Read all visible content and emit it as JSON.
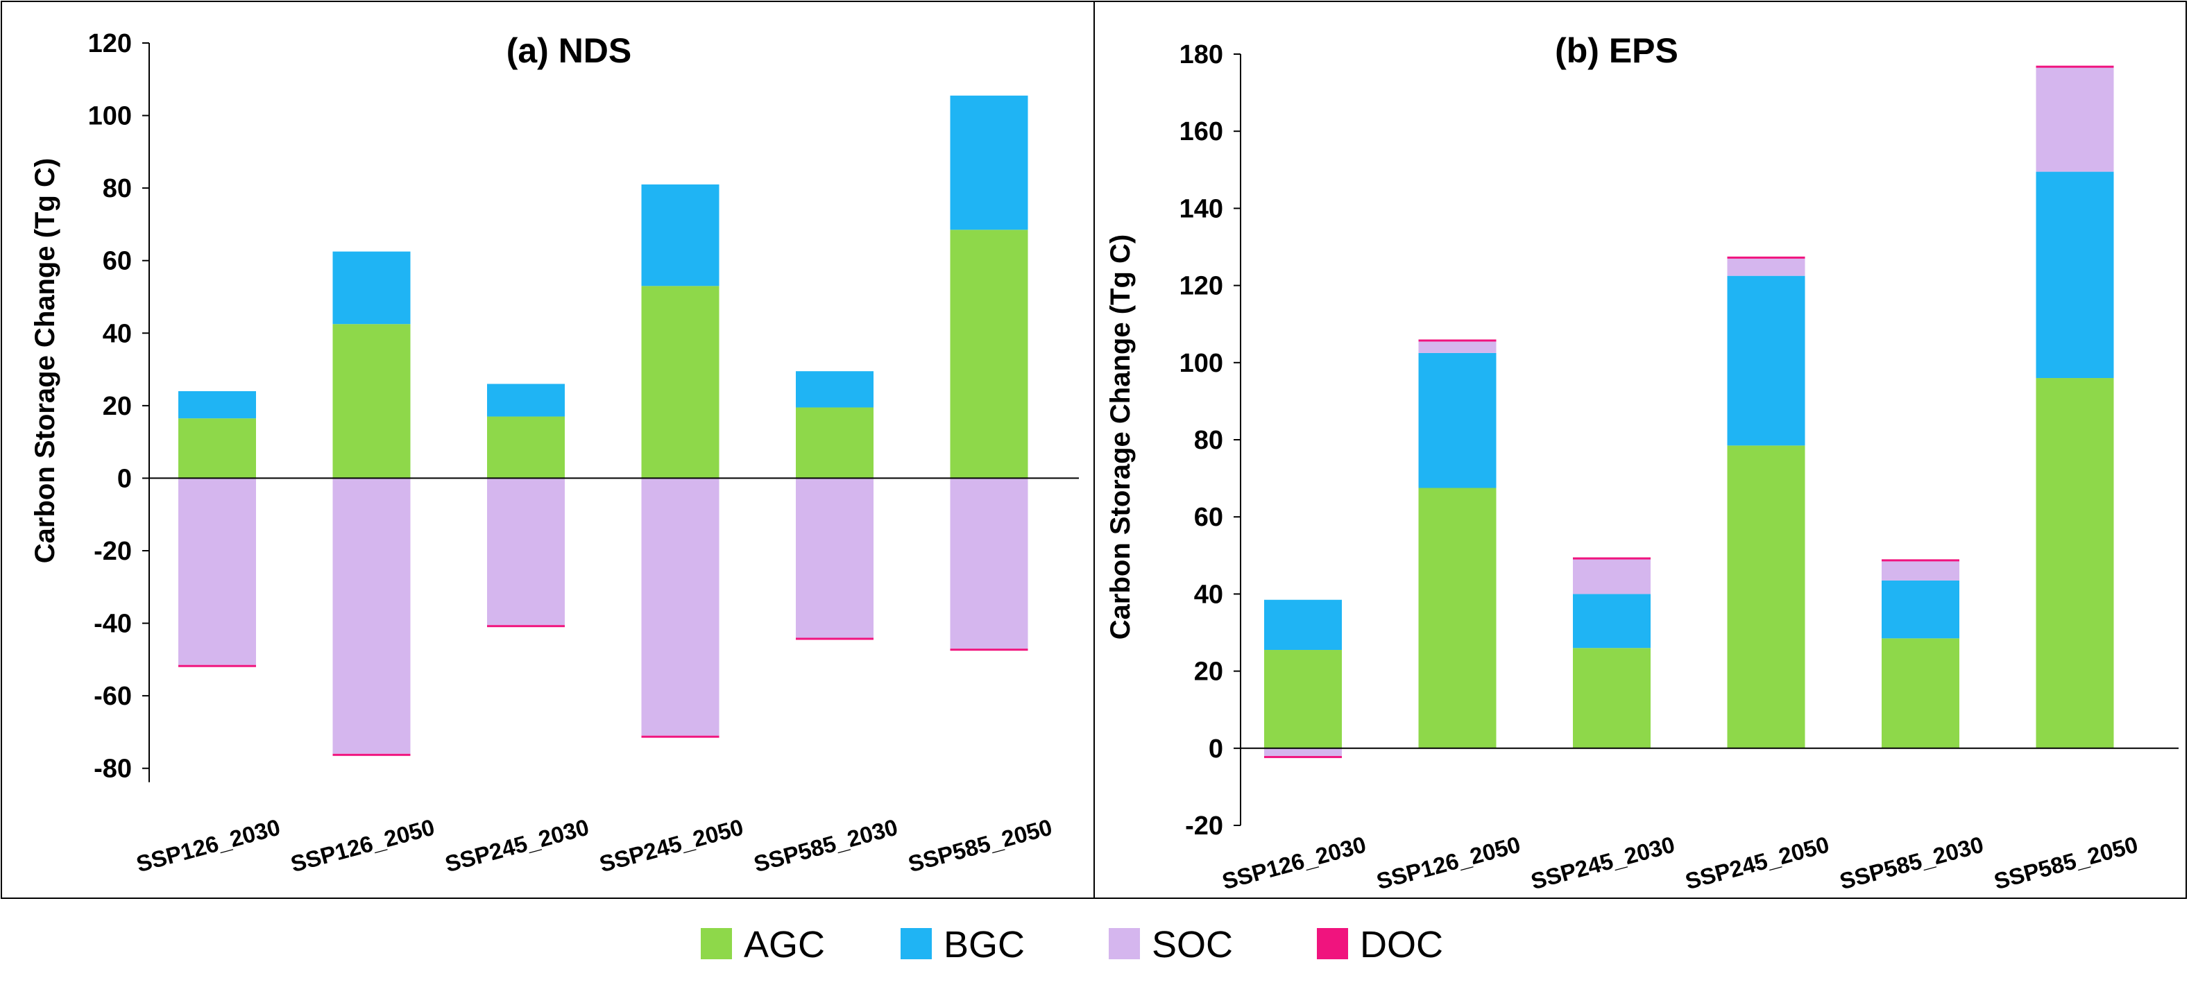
{
  "chart_data": [
    {
      "type": "bar",
      "stacked": true,
      "title": "(a) NDS",
      "ylabel": "Carbon Storage Change (Tg C)",
      "xlabel": "",
      "ylim": [
        -90,
        120
      ],
      "yticks": [
        -80,
        -60,
        -40,
        -20,
        0,
        20,
        40,
        60,
        80,
        100,
        120
      ],
      "categories": [
        "SSP126_2030",
        "SSP126_2050",
        "SSP245_2030",
        "SSP245_2050",
        "SSP585_2030",
        "SSP585_2050"
      ],
      "series": [
        {
          "name": "AGC",
          "values": [
            16.5,
            42.5,
            17,
            53,
            19.5,
            68.5
          ]
        },
        {
          "name": "BGC",
          "values": [
            7.5,
            20,
            9,
            28,
            10,
            37
          ]
        },
        {
          "name": "SOC",
          "values": [
            -51.5,
            -76,
            -40.5,
            -71,
            -44,
            -47
          ]
        },
        {
          "name": "DOC",
          "values": [
            -0.5,
            -0.5,
            -0.5,
            -0.5,
            -0.5,
            -0.5
          ]
        }
      ]
    },
    {
      "type": "bar",
      "stacked": true,
      "title": "(b) EPS",
      "ylabel": "Carbon Storage Change (Tg C)",
      "xlabel": "",
      "ylim": [
        -20,
        180
      ],
      "yticks": [
        -20,
        0,
        20,
        40,
        60,
        80,
        100,
        120,
        140,
        160,
        180
      ],
      "categories": [
        "SSP126_2030",
        "SSP126_2050",
        "SSP245_2030",
        "SSP245_2050",
        "SSP585_2030",
        "SSP585_2050"
      ],
      "series": [
        {
          "name": "AGC",
          "values": [
            25.5,
            67.5,
            26,
            78.5,
            28.5,
            96
          ]
        },
        {
          "name": "BGC",
          "values": [
            13,
            35,
            14,
            44,
            15,
            53.5
          ]
        },
        {
          "name": "SOC",
          "values": [
            -2,
            3,
            9,
            4.5,
            5,
            27
          ]
        },
        {
          "name": "DOC",
          "values": [
            -0.5,
            0.5,
            0.5,
            0.5,
            0.5,
            0.5
          ]
        }
      ]
    }
  ],
  "legend": [
    {
      "name": "AGC",
      "color": "#8ed84a"
    },
    {
      "name": "BGC",
      "color": "#1fb4f4"
    },
    {
      "name": "SOC",
      "color": "#d5b6ee"
    },
    {
      "name": "DOC",
      "color": "#f0147e"
    }
  ]
}
